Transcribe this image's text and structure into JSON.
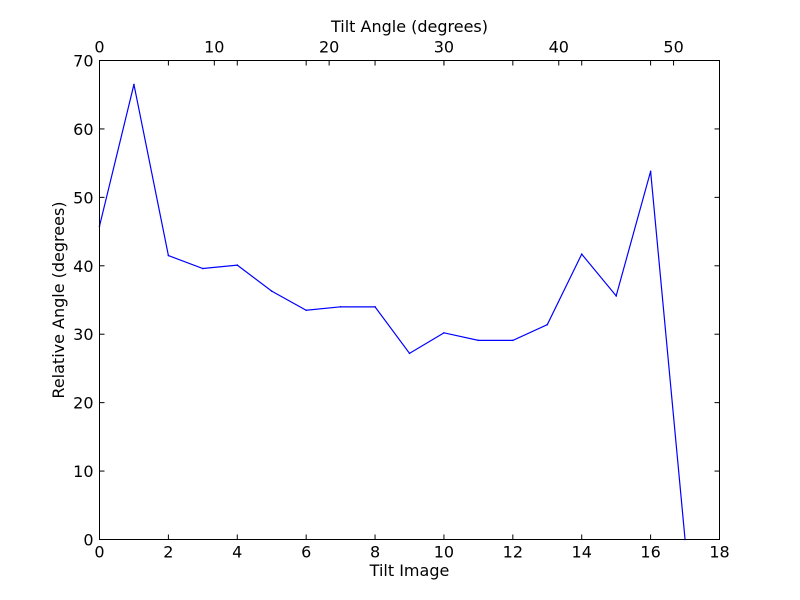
{
  "chart_data": {
    "type": "line",
    "xlabel": "Tilt Image",
    "ylabel": "Relative Angle (degrees)",
    "top_xlabel": "Tilt Angle (degrees)",
    "xlim": [
      0,
      18
    ],
    "ylim": [
      0,
      70
    ],
    "top_xlim": [
      0,
      54
    ],
    "x_ticks": [
      0,
      2,
      4,
      6,
      8,
      10,
      12,
      14,
      16,
      18
    ],
    "y_ticks": [
      0,
      10,
      20,
      30,
      40,
      50,
      60,
      70
    ],
    "top_x_ticks": [
      0,
      10,
      20,
      30,
      40,
      50
    ],
    "grid": false,
    "line_color": "#0000ff",
    "series": [
      {
        "x": [
          0,
          1,
          2,
          3,
          4,
          5,
          6,
          7,
          8,
          9,
          10,
          11,
          12,
          13,
          14,
          15,
          16,
          17
        ],
        "values": [
          45.8,
          66.5,
          41.5,
          39.6,
          40.1,
          36.3,
          33.5,
          34.0,
          34.0,
          27.2,
          30.2,
          29.1,
          29.1,
          31.4,
          41.7,
          35.6,
          53.8,
          0.0
        ]
      }
    ]
  }
}
